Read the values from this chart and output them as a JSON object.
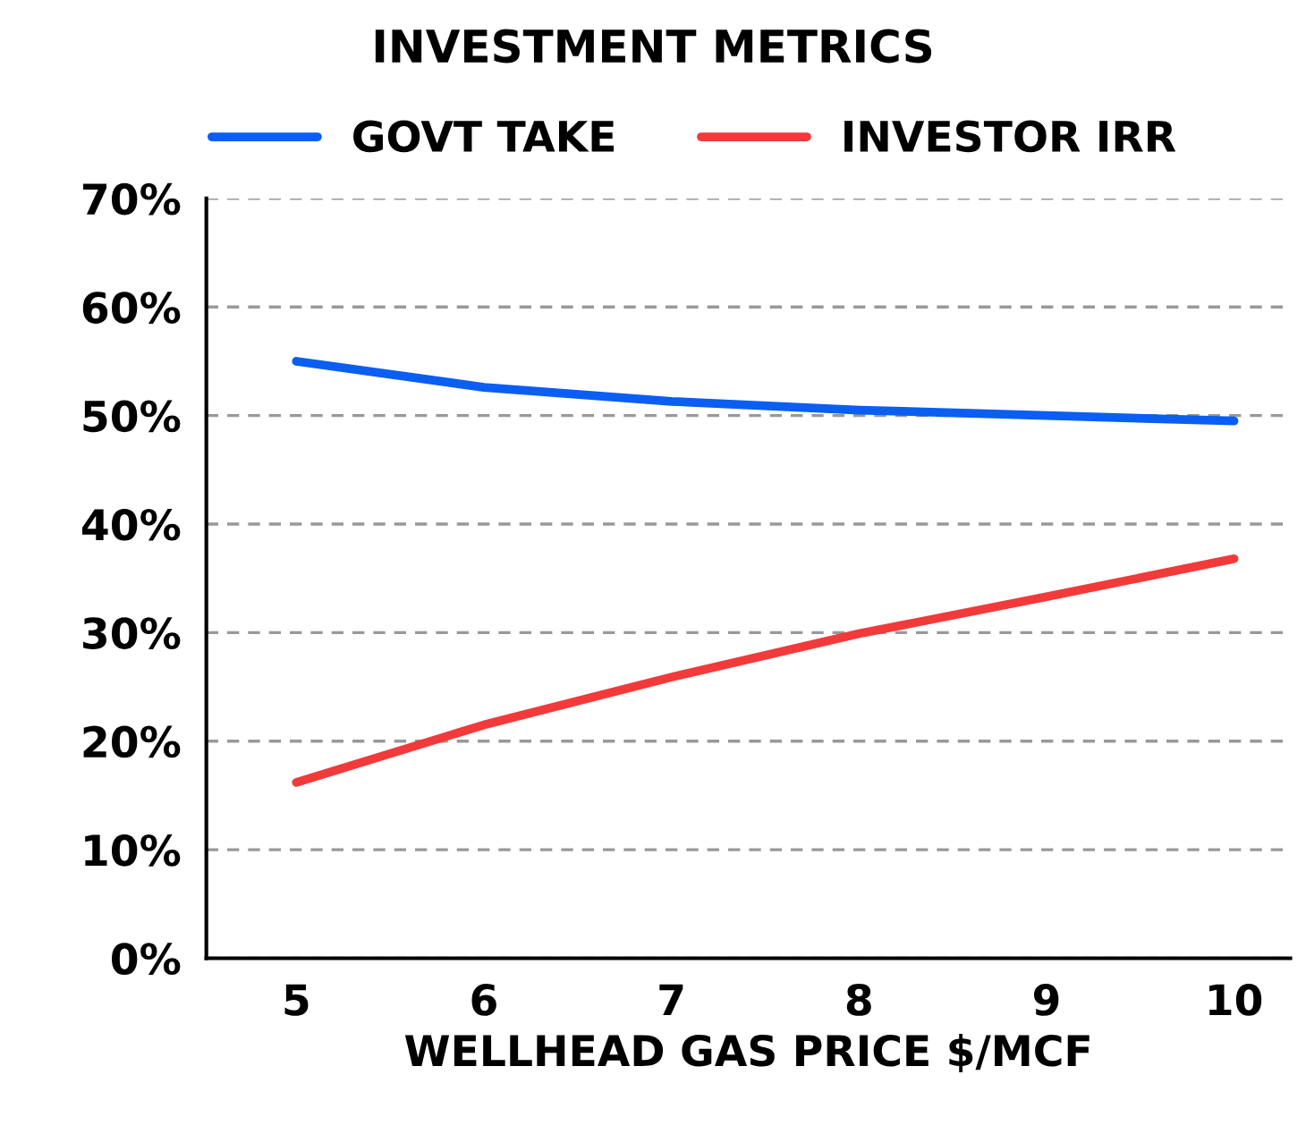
{
  "chart_data": {
    "type": "line",
    "title": "INVESTMENT METRICS",
    "xlabel": "WELLHEAD GAS PRICE $/MCF",
    "categories": [
      "5",
      "6",
      "7",
      "8",
      "9",
      "10"
    ],
    "series": [
      {
        "name": "GOVT TAKE",
        "color": "#0b5ef2",
        "values": [
          55.0,
          52.6,
          51.3,
          50.5,
          50.0,
          49.5
        ]
      },
      {
        "name": "INVESTOR IRR",
        "color": "#f23a3a",
        "values": [
          16.2,
          21.5,
          25.9,
          29.9,
          33.3,
          36.8
        ]
      }
    ],
    "ylim": [
      0,
      70
    ],
    "yticks": [
      {
        "value": 0,
        "label": "0%"
      },
      {
        "value": 10,
        "label": "10%"
      },
      {
        "value": 20,
        "label": "20%"
      },
      {
        "value": 30,
        "label": "30%"
      },
      {
        "value": 40,
        "label": "40%"
      },
      {
        "value": 50,
        "label": "50%"
      },
      {
        "value": 60,
        "label": "60%"
      },
      {
        "value": 70,
        "label": "70%"
      }
    ],
    "grid": "y",
    "legend": "top",
    "marker": "none",
    "line_style": "solid"
  }
}
